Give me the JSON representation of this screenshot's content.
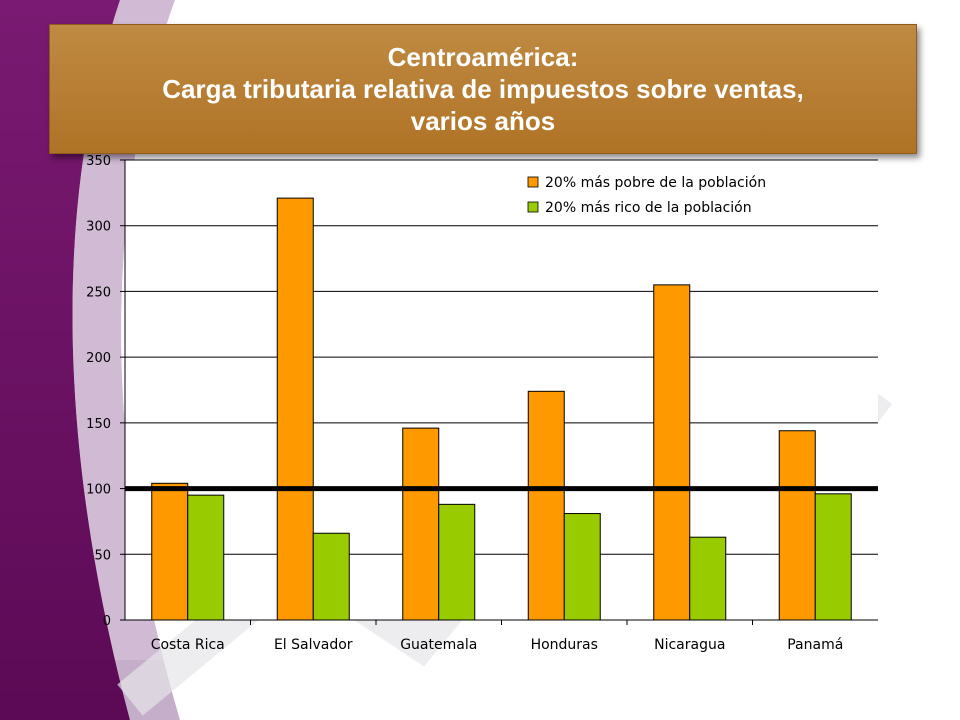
{
  "slide": {
    "title_line1": "Centroamérica:",
    "title_line2": "Carga tributaria relativa de impuestos sobre ventas,",
    "title_line3": "varios años"
  },
  "colors": {
    "series_poor": "#ff9900",
    "series_rich": "#99cc00",
    "title_box": "#b5782e",
    "side_purple": "#6a0d62"
  },
  "chart_data": {
    "type": "bar",
    "categories": [
      "Costa Rica",
      "El Salvador",
      "Guatemala",
      "Honduras",
      "Nicaragua",
      "Panamá"
    ],
    "series": [
      {
        "name": "20% más pobre de la población",
        "values": [
          104,
          321,
          146,
          174,
          255,
          144
        ]
      },
      {
        "name": "20% más rico de la población",
        "values": [
          95,
          66,
          88,
          81,
          63,
          96
        ]
      }
    ],
    "yticks": [
      "0",
      "50",
      "100",
      "150",
      "200",
      "250",
      "300",
      "350"
    ],
    "ylim": [
      0,
      350
    ],
    "reference_line": 100,
    "grid": true,
    "legend_position": "top-right"
  }
}
